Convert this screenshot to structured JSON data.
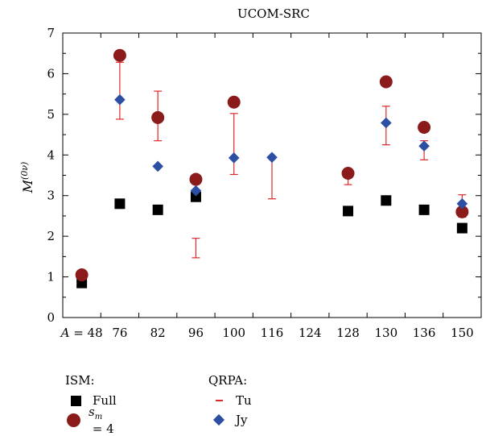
{
  "chart_data": {
    "type": "scatter",
    "title": "UCOM-SRC",
    "ylabel_main": "M",
    "ylabel_sup": "(0ν)",
    "ylim": [
      0,
      7
    ],
    "yticks": [
      "0",
      "1",
      "2",
      "3",
      "4",
      "5",
      "6",
      "7"
    ],
    "categories": [
      "A = 48",
      "76",
      "82",
      "96",
      "100",
      "116",
      "124",
      "128",
      "130",
      "136",
      "150"
    ],
    "series": [
      {
        "name": "Full",
        "group": "ISM",
        "marker": "square",
        "color": "#000000",
        "points": [
          [
            0,
            0.85
          ],
          [
            1,
            2.8
          ],
          [
            2,
            2.65
          ],
          [
            3,
            2.97
          ],
          [
            7,
            2.62
          ],
          [
            8,
            2.88
          ],
          [
            9,
            2.65
          ],
          [
            10,
            2.2
          ]
        ]
      },
      {
        "name": "s_m = 4",
        "group": "ISM",
        "marker": "circle",
        "color": "#8b1a1a",
        "points": [
          [
            0,
            1.05
          ],
          [
            1,
            6.45
          ],
          [
            2,
            4.92
          ],
          [
            3,
            3.4
          ],
          [
            4,
            5.3
          ],
          [
            7,
            3.55
          ],
          [
            8,
            5.8
          ],
          [
            9,
            4.68
          ],
          [
            10,
            2.6
          ]
        ]
      },
      {
        "name": "Tu",
        "group": "QRPA",
        "marker": "errorbar",
        "color": "#e0282a",
        "ranges": [
          [
            1,
            4.88,
            6.28
          ],
          [
            2,
            4.35,
            5.57
          ],
          [
            3,
            1.47,
            1.95
          ],
          [
            4,
            3.52,
            5.02
          ],
          [
            5,
            2.92,
            3.95
          ],
          [
            7,
            3.27,
            3.55
          ],
          [
            8,
            4.25,
            5.2
          ],
          [
            9,
            3.88,
            4.35
          ],
          [
            10,
            2.47,
            3.02
          ]
        ]
      },
      {
        "name": "Jy",
        "group": "QRPA",
        "marker": "diamond",
        "color": "#2c4fa3",
        "points": [
          [
            1,
            5.36
          ],
          [
            2,
            3.72
          ],
          [
            3,
            3.12
          ],
          [
            4,
            3.93
          ],
          [
            5,
            3.94
          ],
          [
            8,
            4.79
          ],
          [
            9,
            4.22
          ],
          [
            10,
            2.8
          ]
        ]
      }
    ]
  },
  "legend": {
    "ism_title": "ISM:",
    "qrpa_title": "QRPA:",
    "full_label": "Full",
    "sm_label_main": "s",
    "sm_label_sub": "m",
    "sm_label_tail": " = 4",
    "tu_label": "Tu",
    "jy_label": "Jy"
  }
}
